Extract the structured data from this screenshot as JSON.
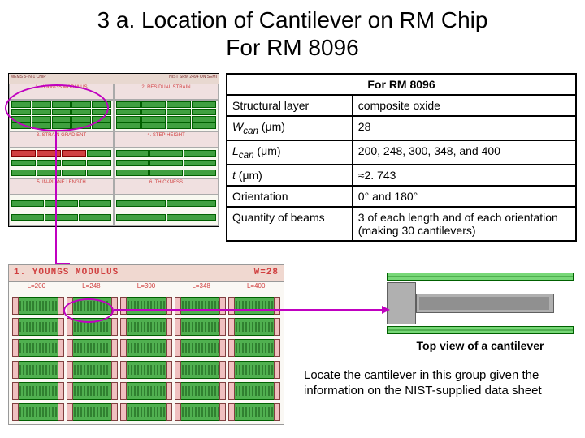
{
  "title_line1": "3 a.  Location of Cantilever on RM Chip",
  "title_line2": "For RM 8096",
  "chip_sections": [
    "1. YOUNGS MODULUS",
    "2. RESIDUAL STRAIN",
    "3. STRAIN GRADIENT",
    "4. STEP HEIGHT",
    "5. IN-PLANE LENGTH",
    "6. THICKNESS"
  ],
  "chip_banner_left": "MEMS 5-IN-1 CHIP",
  "chip_banner_right": "NIST SRM 2494   ON SEMI",
  "table": {
    "header": "For RM 8096",
    "rows": [
      {
        "k": "Structural layer",
        "v": "composite oxide",
        "ital": false
      },
      {
        "k": "W_can (μm)",
        "k_html": "<span class='ital'>W<sub>can</sub></span> (μm)",
        "v": "28"
      },
      {
        "k": "L_can (μm)",
        "k_html": "<span class='ital'>L<sub>can</sub></span> (μm)",
        "v": "200, 248, 300, 348, and 400"
      },
      {
        "k": "t (μm)",
        "k_html": "<span class='ital'>t</span> (μm)",
        "v": "≈2. 743"
      },
      {
        "k": "Orientation",
        "v": "0° and 180°"
      },
      {
        "k": "Quantity of beams",
        "v": "3 of each length and of each orientation (making 30 cantilevers)"
      }
    ]
  },
  "detail": {
    "header_left": "1. YOUNGS MODULUS",
    "header_right": "W=28",
    "col_labels": [
      "L=200",
      "L=248",
      "L=300",
      "L=348",
      "L=400"
    ],
    "rows": 6,
    "cols": 5
  },
  "cantilever_caption": "Top view of a cantilever",
  "instruction_text": "Locate the cantilever in this group given the information on the NIST-supplied data sheet",
  "colors": {
    "magenta": "#c000c0",
    "green": "#50b050",
    "green_dark": "#006000",
    "red": "#d04040"
  }
}
